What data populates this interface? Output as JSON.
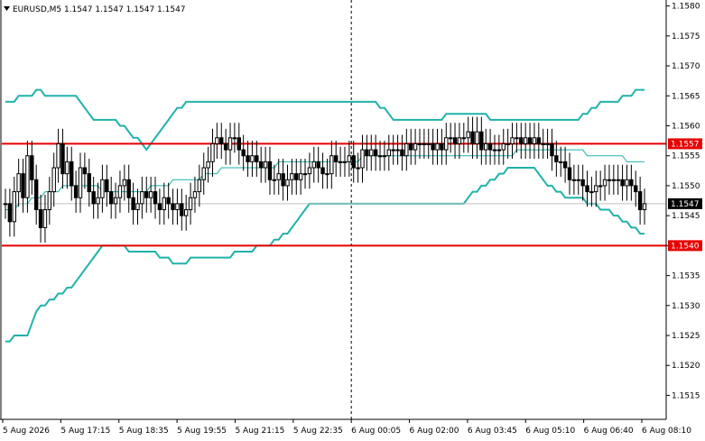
{
  "chart_data": {
    "type": "candlestick",
    "title": "EURUSD,M5  1.1547 1.1547 1.1547 1.1547",
    "symbol": "EURUSD",
    "timeframe": "M5",
    "ohlc_readout": [
      "1.1547",
      "1.1547",
      "1.1547",
      "1.1547"
    ],
    "current_price": 1.1547,
    "current_price_label": "1.1547",
    "ylim": [
      1.1511,
      1.1581
    ],
    "y_ticks": [
      1.1515,
      1.152,
      1.1525,
      1.153,
      1.1535,
      1.154,
      1.1545,
      1.155,
      1.1555,
      1.156,
      1.1565,
      1.157,
      1.1575,
      1.158
    ],
    "y_tick_labels": [
      "1.1515",
      "1.1520",
      "1.1525",
      "1.1530",
      "1.1535",
      "1.1540",
      "1.1545",
      "1.1550",
      "1.1555",
      "1.1560",
      "1.1565",
      "1.1570",
      "1.1575",
      "1.1580"
    ],
    "x_tick_labels": [
      "5 Aug 2026",
      "5 Aug 17:15",
      "5 Aug 18:35",
      "5 Aug 19:55",
      "5 Aug 21:15",
      "5 Aug 22:35",
      "6 Aug 00:05",
      "6 Aug 02:00",
      "6 Aug 03:45",
      "6 Aug 05:10",
      "6 Aug 06:40",
      "6 Aug 08:10"
    ],
    "grid": false,
    "vertical_marker_at_tick": 6,
    "levels": [
      {
        "value": 1.1557,
        "label": "1.1557",
        "color": "#e60000"
      },
      {
        "value": 1.154,
        "label": "1.1540",
        "color": "#e60000"
      }
    ],
    "candles_close": [
      1.1547,
      1.1544,
      1.1549,
      1.1552,
      1.1548,
      1.1555,
      1.1551,
      1.1546,
      1.1543,
      1.1546,
      1.1549,
      1.1553,
      1.1557,
      1.1552,
      1.1554,
      1.155,
      1.1548,
      1.1553,
      1.1552,
      1.1549,
      1.1547,
      1.1548,
      1.1551,
      1.1549,
      1.1547,
      1.1548,
      1.155,
      1.1551,
      1.1548,
      1.1546,
      1.1547,
      1.1549,
      1.1548,
      1.1549,
      1.1547,
      1.1546,
      1.1548,
      1.1547,
      1.1546,
      1.1547,
      1.1545,
      1.1546,
      1.1548,
      1.1549,
      1.1551,
      1.1553,
      1.1554,
      1.1557,
      1.1558,
      1.1557,
      1.1556,
      1.1558,
      1.1558,
      1.1556,
      1.1555,
      1.1554,
      1.1555,
      1.1554,
      1.1553,
      1.1554,
      1.1551,
      1.1551,
      1.1552,
      1.155,
      1.1551,
      1.1552,
      1.1551,
      1.1552,
      1.1552,
      1.1553,
      1.1554,
      1.1553,
      1.1552,
      1.1552,
      1.1555,
      1.1554,
      1.1554,
      1.1554,
      1.1555,
      1.1553,
      1.1553,
      1.1556,
      1.1555,
      1.1556,
      1.1555,
      1.1555,
      1.1555,
      1.1556,
      1.1556,
      1.1556,
      1.1555,
      1.1557,
      1.1556,
      1.1557,
      1.1557,
      1.1557,
      1.1557,
      1.1556,
      1.1557,
      1.1556,
      1.1558,
      1.1558,
      1.1557,
      1.1558,
      1.1558,
      1.1559,
      1.1557,
      1.1559,
      1.1556,
      1.1557,
      1.1556,
      1.1556,
      1.1556,
      1.1557,
      1.1557,
      1.1558,
      1.1558,
      1.1557,
      1.1558,
      1.1557,
      1.1558,
      1.1557,
      1.1557,
      1.1557,
      1.1555,
      1.1554,
      1.1554,
      1.1553,
      1.1551,
      1.1551,
      1.1551,
      1.155,
      1.1549,
      1.1549,
      1.155,
      1.155,
      1.1551,
      1.1551,
      1.1551,
      1.1551,
      1.155,
      1.1551,
      1.155,
      1.1549,
      1.1546,
      1.1547
    ],
    "moving_average": [
      1.1546,
      1.1546,
      1.1546,
      1.1547,
      1.1547,
      1.1547,
      1.1548,
      1.1548,
      1.1548,
      1.1549,
      1.1549,
      1.1549,
      1.1549,
      1.155,
      1.155,
      1.155,
      1.155,
      1.155,
      1.155,
      1.155,
      1.155,
      1.155,
      1.1549,
      1.1549,
      1.1549,
      1.1549,
      1.1549,
      1.1549,
      1.1549,
      1.1549,
      1.1549,
      1.1549,
      1.1549,
      1.155,
      1.155,
      1.155,
      1.155,
      1.155,
      1.1551,
      1.1551,
      1.1551,
      1.1551,
      1.1551,
      1.1551,
      1.1551,
      1.1552,
      1.1552,
      1.1552,
      1.1552,
      1.1553,
      1.1553,
      1.1553,
      1.1553,
      1.1553,
      1.1553,
      1.1553,
      1.1553,
      1.1553,
      1.1553,
      1.1553,
      1.1553,
      1.1553,
      1.1554,
      1.1554,
      1.1554,
      1.1554,
      1.1554,
      1.1554,
      1.1554,
      1.1554,
      1.1554,
      1.1554,
      1.1554,
      1.1554,
      1.1554,
      1.1554,
      1.1554,
      1.1554,
      1.1554,
      1.1554,
      1.1554,
      1.1555,
      1.1555,
      1.1555,
      1.1555,
      1.1555,
      1.1555,
      1.1555,
      1.1555,
      1.1555,
      1.1555,
      1.1555,
      1.1555,
      1.1555,
      1.1555,
      1.1555,
      1.1555,
      1.1555,
      1.1555,
      1.1555,
      1.1555,
      1.1555,
      1.1555,
      1.1555,
      1.1555,
      1.1555,
      1.1555,
      1.1555,
      1.1555,
      1.1555,
      1.1555,
      1.1555,
      1.1555,
      1.1555,
      1.1555,
      1.1555,
      1.1556,
      1.1556,
      1.1556,
      1.1556,
      1.1556,
      1.1556,
      1.1556,
      1.1556,
      1.1556,
      1.1556,
      1.1556,
      1.1556,
      1.1556,
      1.1556,
      1.1556,
      1.1556,
      1.1555,
      1.1555,
      1.1555,
      1.1555,
      1.1555,
      1.1555,
      1.1555,
      1.1555,
      1.1555,
      1.1554,
      1.1554,
      1.1554,
      1.1554,
      1.1554
    ],
    "upper_band": [
      1.1564,
      1.1564,
      1.1564,
      1.1565,
      1.1565,
      1.1565,
      1.1565,
      1.1566,
      1.1566,
      1.1565,
      1.1565,
      1.1565,
      1.1565,
      1.1565,
      1.1565,
      1.1565,
      1.1565,
      1.1564,
      1.1563,
      1.1562,
      1.1561,
      1.1561,
      1.1561,
      1.1561,
      1.1561,
      1.1561,
      1.156,
      1.156,
      1.1559,
      1.1558,
      1.1558,
      1.1557,
      1.1556,
      1.1557,
      1.1558,
      1.1559,
      1.156,
      1.1561,
      1.1562,
      1.1563,
      1.1563,
      1.1564,
      1.1564,
      1.1564,
      1.1564,
      1.1564,
      1.1564,
      1.1564,
      1.1564,
      1.1564,
      1.1564,
      1.1564,
      1.1564,
      1.1564,
      1.1564,
      1.1564,
      1.1564,
      1.1564,
      1.1564,
      1.1564,
      1.1564,
      1.1564,
      1.1564,
      1.1564,
      1.1564,
      1.1564,
      1.1564,
      1.1564,
      1.1564,
      1.1564,
      1.1564,
      1.1564,
      1.1564,
      1.1564,
      1.1564,
      1.1564,
      1.1564,
      1.1564,
      1.1564,
      1.1564,
      1.1564,
      1.1564,
      1.1564,
      1.1564,
      1.1564,
      1.1563,
      1.1563,
      1.1562,
      1.1561,
      1.1561,
      1.1561,
      1.1561,
      1.1561,
      1.1561,
      1.1561,
      1.1561,
      1.1561,
      1.1561,
      1.1561,
      1.1561,
      1.1562,
      1.1562,
      1.1562,
      1.1562,
      1.1562,
      1.1562,
      1.1562,
      1.1562,
      1.1562,
      1.1562,
      1.1561,
      1.1561,
      1.1561,
      1.1561,
      1.1561,
      1.1561,
      1.1561,
      1.1561,
      1.1561,
      1.1561,
      1.1561,
      1.1561,
      1.1561,
      1.1561,
      1.1561,
      1.1561,
      1.1561,
      1.1561,
      1.1561,
      1.1561,
      1.1561,
      1.1562,
      1.1562,
      1.1563,
      1.1563,
      1.1564,
      1.1564,
      1.1564,
      1.1564,
      1.1564,
      1.1565,
      1.1565,
      1.1565,
      1.1566,
      1.1566,
      1.1566
    ],
    "lower_band": [
      1.1524,
      1.1524,
      1.1525,
      1.1525,
      1.1525,
      1.1525,
      1.1527,
      1.1529,
      1.153,
      1.153,
      1.1531,
      1.1531,
      1.1532,
      1.1532,
      1.1533,
      1.1533,
      1.1534,
      1.1535,
      1.1536,
      1.1537,
      1.1538,
      1.1539,
      1.154,
      1.154,
      1.154,
      1.154,
      1.154,
      1.154,
      1.1539,
      1.1539,
      1.1539,
      1.1539,
      1.1539,
      1.1539,
      1.1539,
      1.1538,
      1.1538,
      1.1538,
      1.1537,
      1.1537,
      1.1537,
      1.1537,
      1.1538,
      1.1538,
      1.1538,
      1.1538,
      1.1538,
      1.1538,
      1.1538,
      1.1538,
      1.1538,
      1.1538,
      1.1539,
      1.1539,
      1.1539,
      1.1539,
      1.1539,
      1.154,
      1.154,
      1.154,
      1.154,
      1.1541,
      1.1541,
      1.1542,
      1.1542,
      1.1543,
      1.1544,
      1.1545,
      1.1546,
      1.1547,
      1.1547,
      1.1547,
      1.1547,
      1.1547,
      1.1547,
      1.1547,
      1.1547,
      1.1547,
      1.1547,
      1.1547,
      1.1547,
      1.1547,
      1.1547,
      1.1547,
      1.1547,
      1.1547,
      1.1547,
      1.1547,
      1.1547,
      1.1547,
      1.1547,
      1.1547,
      1.1547,
      1.1547,
      1.1547,
      1.1547,
      1.1547,
      1.1547,
      1.1547,
      1.1547,
      1.1547,
      1.1547,
      1.1547,
      1.1547,
      1.1547,
      1.1548,
      1.1549,
      1.1549,
      1.155,
      1.155,
      1.1551,
      1.1551,
      1.1552,
      1.1552,
      1.1553,
      1.1553,
      1.1553,
      1.1553,
      1.1553,
      1.1553,
      1.1553,
      1.1552,
      1.1551,
      1.155,
      1.155,
      1.1549,
      1.1549,
      1.1548,
      1.1548,
      1.1548,
      1.1548,
      1.1548,
      1.1547,
      1.1547,
      1.1547,
      1.1546,
      1.1546,
      1.1546,
      1.1545,
      1.1545,
      1.1544,
      1.1544,
      1.1543,
      1.1543,
      1.1542,
      1.1542
    ]
  },
  "colors": {
    "background": "#ffffff",
    "axis": "#000000",
    "candle": "#000000",
    "bands": "#20b2aa",
    "moving_average": "#20b2aa",
    "level_line": "#e60000",
    "current_price_tag": "#000000",
    "current_price_line": "#c0c0c0",
    "vertical_marker": "#000000"
  }
}
